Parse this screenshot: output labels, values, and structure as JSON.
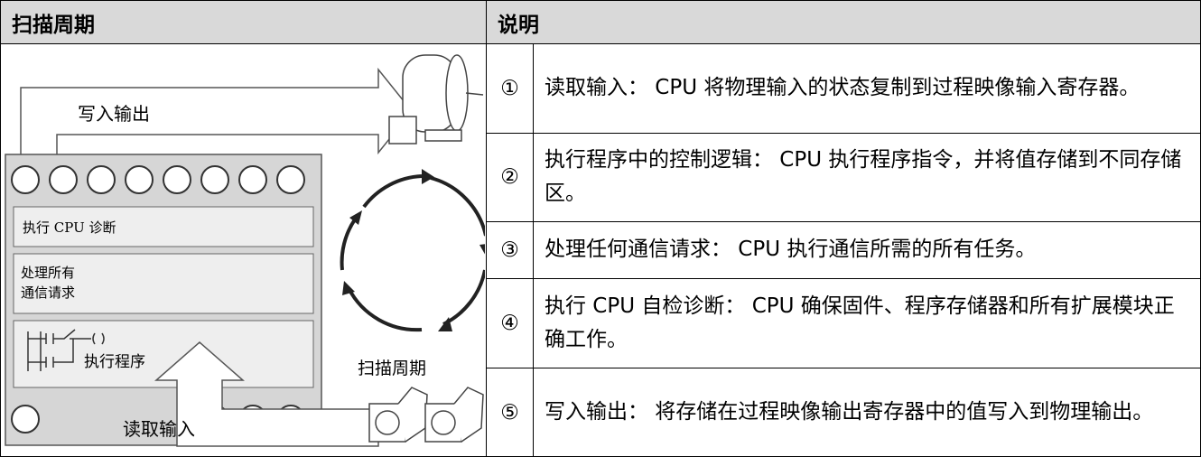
{
  "header": {
    "col1": "扫描周期",
    "col2": "说明"
  },
  "rows": [
    {
      "number": "①",
      "text": "读取输入： CPU 将物理输入的状态复制到过程映像输入寄存器。"
    },
    {
      "number": "②",
      "text": "执行程序中的控制逻辑： CPU 执行程序指令，并将值存储到不同存储区。"
    },
    {
      "number": "③",
      "text": "处理任何通信请求： CPU 执行通信所需的所有任务。"
    },
    {
      "number": "④",
      "text": "执行 CPU 自检诊断： CPU 确保固件、程序存储器和所有扩展模块正确工作。"
    },
    {
      "number": "⑤",
      "text": "写入输出： 将存储在过程映像输出寄存器中的值写入到物理输出。"
    }
  ],
  "diagram": {
    "write_output": "写入输出",
    "cpu_diagnostics": "执行 CPU 诊断",
    "comm_line1": "处理所有",
    "comm_line2": "通信请求",
    "execute_program": "执行程序",
    "scan_cycle": "扫描周期",
    "read_input": "读取输入"
  }
}
